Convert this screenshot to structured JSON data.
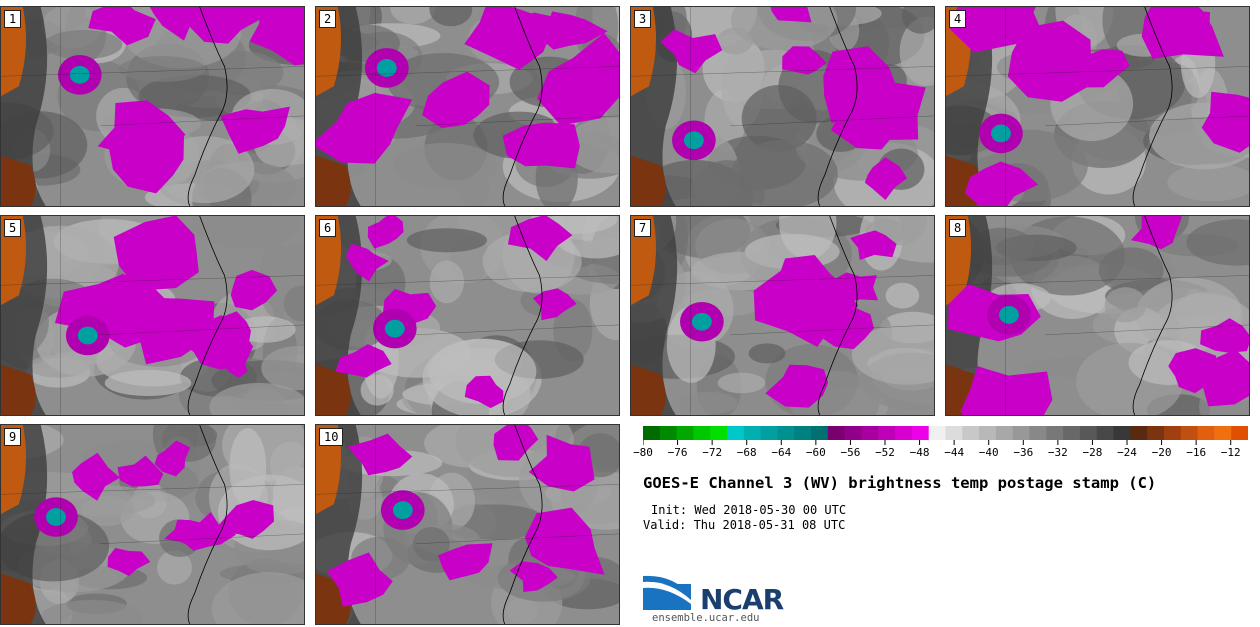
{
  "panels": [
    "1",
    "2",
    "3",
    "4",
    "5",
    "6",
    "7",
    "8",
    "9",
    "10"
  ],
  "chart_data": {
    "type": "heatmap",
    "title": "GOES-E Channel 3 (WV) brightness temp postage stamp (C)",
    "init": "Init: Wed 2018-05-30 00 UTC",
    "valid": "Valid: Thu 2018-05-31 08 UTC",
    "colorbar": {
      "ticks": [
        "−80",
        "−76",
        "−72",
        "−68",
        "−64",
        "−60",
        "−56",
        "−52",
        "−48",
        "−44",
        "−40",
        "−36",
        "−32",
        "−28",
        "−24",
        "−20",
        "−16",
        "−12"
      ],
      "range": [
        -80,
        -10
      ],
      "colors": [
        "#006b00",
        "#008a00",
        "#00a800",
        "#00c800",
        "#00e000",
        "#00c8c8",
        "#00b0b0",
        "#00a0a0",
        "#009090",
        "#008080",
        "#007070",
        "#7a0070",
        "#900088",
        "#a800a0",
        "#c000b8",
        "#d800d0",
        "#ee00e8",
        "#f0f0f0",
        "#dcdcdc",
        "#c8c8c8",
        "#b8b8b8",
        "#a8a8a8",
        "#989898",
        "#888888",
        "#787878",
        "#686868",
        "#585858",
        "#484848",
        "#383838",
        "#5a2a10",
        "#7a3510",
        "#a04010",
        "#c05010",
        "#e06010",
        "#f07010",
        "#e05000"
      ]
    }
  },
  "footer": {
    "org": "NCAR",
    "url": "ensemble.ucar.edu"
  }
}
